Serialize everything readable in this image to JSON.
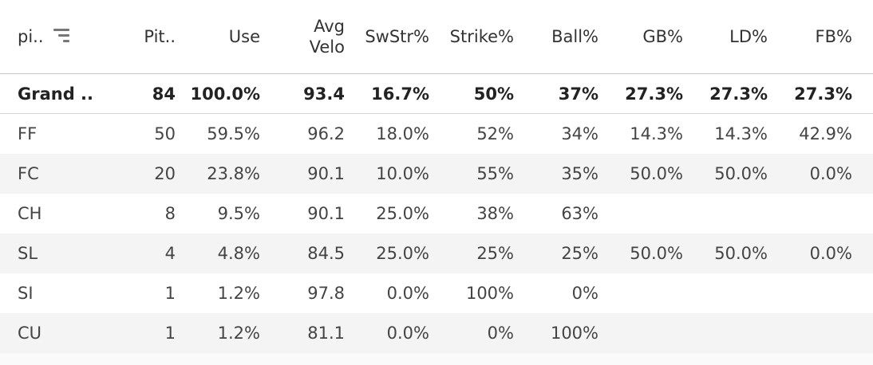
{
  "headers": {
    "pitch_type": "pi..",
    "pitches": "Pit..",
    "use": "Use",
    "avg_velo_line1": "Avg",
    "avg_velo_line2": "Velo",
    "swstr": "SwStr%",
    "strike": "Strike%",
    "ball": "Ball%",
    "gb": "GB%",
    "ld": "LD%",
    "fb": "FB%"
  },
  "rows": [
    {
      "pitch": "Grand ..",
      "pitches": "84",
      "use": "100.0%",
      "velo": "93.4",
      "swstr": "16.7%",
      "strike": "50%",
      "ball": "37%",
      "gb": "27.3%",
      "ld": "27.3%",
      "fb": "27.3%"
    },
    {
      "pitch": "FF",
      "pitches": "50",
      "use": "59.5%",
      "velo": "96.2",
      "swstr": "18.0%",
      "strike": "52%",
      "ball": "34%",
      "gb": "14.3%",
      "ld": "14.3%",
      "fb": "42.9%"
    },
    {
      "pitch": "FC",
      "pitches": "20",
      "use": "23.8%",
      "velo": "90.1",
      "swstr": "10.0%",
      "strike": "55%",
      "ball": "35%",
      "gb": "50.0%",
      "ld": "50.0%",
      "fb": "0.0%"
    },
    {
      "pitch": "CH",
      "pitches": "8",
      "use": "9.5%",
      "velo": "90.1",
      "swstr": "25.0%",
      "strike": "38%",
      "ball": "63%",
      "gb": "",
      "ld": "",
      "fb": ""
    },
    {
      "pitch": "SL",
      "pitches": "4",
      "use": "4.8%",
      "velo": "84.5",
      "swstr": "25.0%",
      "strike": "25%",
      "ball": "25%",
      "gb": "50.0%",
      "ld": "50.0%",
      "fb": "0.0%"
    },
    {
      "pitch": "SI",
      "pitches": "1",
      "use": "1.2%",
      "velo": "97.8",
      "swstr": "0.0%",
      "strike": "100%",
      "ball": "0%",
      "gb": "",
      "ld": "",
      "fb": ""
    },
    {
      "pitch": "CU",
      "pitches": "1",
      "use": "1.2%",
      "velo": "81.1",
      "swstr": "0.0%",
      "strike": "0%",
      "ball": "100%",
      "gb": "",
      "ld": "",
      "fb": ""
    }
  ],
  "icons": {
    "sort": "sort-descending-icon"
  },
  "colors": {
    "header_border": "#c8c8c8",
    "alt_row": "#f4f4f4",
    "text": "#333333"
  }
}
